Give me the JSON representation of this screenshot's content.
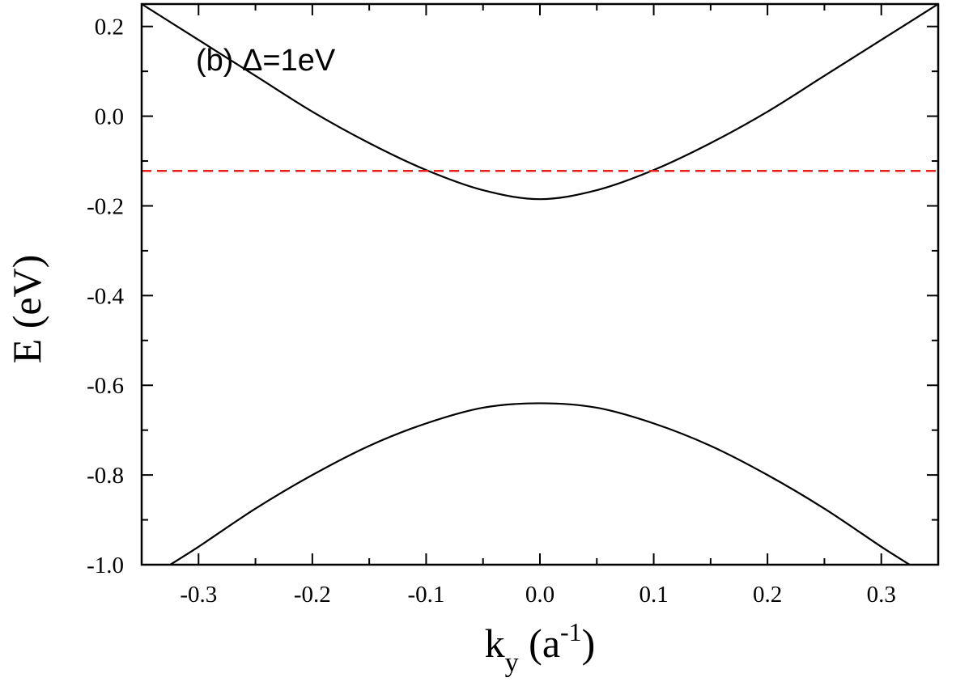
{
  "chart_data": {
    "type": "line",
    "panel_label": "(b) Δ=1eV",
    "xlabel": {
      "main": "k",
      "sub": "y",
      "unit_open": " (a",
      "unit_sup": "-1",
      "unit_close": ")"
    },
    "ylabel": "E (eV)",
    "xlim": [
      -0.35,
      0.35
    ],
    "ylim": [
      -1.0,
      0.25
    ],
    "xticks": [
      -0.3,
      -0.2,
      -0.1,
      0.0,
      0.1,
      0.2,
      0.3
    ],
    "xtick_labels": [
      "-0.3",
      "-0.2",
      "-0.1",
      "0.0",
      "0.1",
      "0.2",
      "0.3"
    ],
    "yticks": [
      0.2,
      0.0,
      -0.2,
      -0.4,
      -0.6,
      -0.8,
      -1.0
    ],
    "ytick_labels": [
      "0.2",
      "0.0",
      "-0.2",
      "-0.4",
      "-0.6",
      "-0.8",
      "-1.0"
    ],
    "grid": false,
    "series": [
      {
        "color": "#000000",
        "style": "solid",
        "x": [
          -0.35,
          -0.3,
          -0.25,
          -0.2,
          -0.15,
          -0.1,
          -0.05,
          0.0,
          0.05,
          0.1,
          0.15,
          0.2,
          0.25,
          0.3,
          0.35
        ],
        "y": [
          0.25,
          0.17,
          0.09,
          0.01,
          -0.06,
          -0.12,
          -0.165,
          -0.185,
          -0.165,
          -0.12,
          -0.06,
          0.01,
          0.09,
          0.17,
          0.25
        ]
      },
      {
        "color": "#000000",
        "style": "solid",
        "x": [
          -0.325,
          -0.3,
          -0.25,
          -0.2,
          -0.15,
          -0.1,
          -0.05,
          0.0,
          0.05,
          0.1,
          0.15,
          0.2,
          0.25,
          0.3,
          0.325
        ],
        "y": [
          -1.0,
          -0.96,
          -0.875,
          -0.8,
          -0.735,
          -0.685,
          -0.65,
          -0.64,
          -0.65,
          -0.685,
          -0.735,
          -0.8,
          -0.875,
          -0.96,
          -1.0
        ]
      },
      {
        "color": "#e8201c",
        "style": "dashed",
        "x": [
          -0.35,
          0.35
        ],
        "y": [
          -0.122,
          -0.122
        ]
      }
    ]
  }
}
